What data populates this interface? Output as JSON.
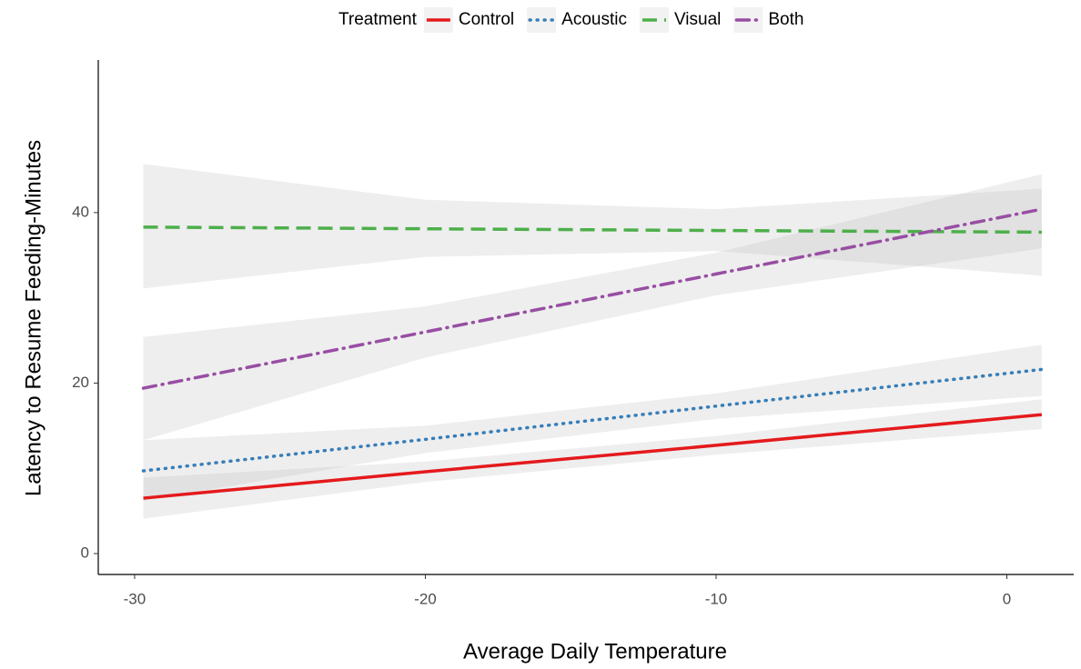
{
  "chart_data": {
    "type": "line",
    "xlabel": "Average Daily Temperature",
    "ylabel": "Latency to Resume Feeding-Minutes",
    "legend_title": "Treatment",
    "legend_position": "top",
    "x": [
      -29.7,
      -20,
      -10,
      1.2
    ],
    "series": [
      {
        "name": "Control",
        "color": "#e41a1c",
        "dash": "solid",
        "values": [
          6.5,
          9.6,
          12.7,
          16.3
        ],
        "lower": [
          4.1,
          8.4,
          11.6,
          14.6
        ],
        "upper": [
          8.9,
          10.8,
          13.8,
          18.1
        ]
      },
      {
        "name": "Acoustic",
        "color": "#377eb8",
        "dash": "dotted",
        "values": [
          9.7,
          13.4,
          17.3,
          21.6
        ],
        "lower": [
          6.2,
          11.8,
          15.8,
          18.5
        ],
        "upper": [
          13.3,
          15.0,
          18.8,
          24.5
        ]
      },
      {
        "name": "Visual",
        "color": "#4daf4a",
        "dash": "dashed",
        "values": [
          38.3,
          38.1,
          37.9,
          37.7
        ],
        "lower": [
          31.1,
          34.8,
          35.5,
          32.6
        ],
        "upper": [
          45.7,
          41.5,
          40.4,
          42.8
        ]
      },
      {
        "name": "Both",
        "color": "#984ea3",
        "dash": "dotdash",
        "values": [
          19.4,
          26.0,
          32.8,
          40.4
        ],
        "lower": [
          13.3,
          23.0,
          30.3,
          35.8
        ],
        "upper": [
          25.4,
          29.0,
          35.3,
          44.5
        ]
      }
    ],
    "band_color": "#bdbdbd",
    "xlim": [
      -31.25,
      2.3
    ],
    "xticks": [
      -30,
      -20,
      -10,
      0
    ],
    "ylim": [
      -2.45,
      57.9
    ],
    "yticks": [
      0,
      20,
      40
    ],
    "grid": false
  }
}
